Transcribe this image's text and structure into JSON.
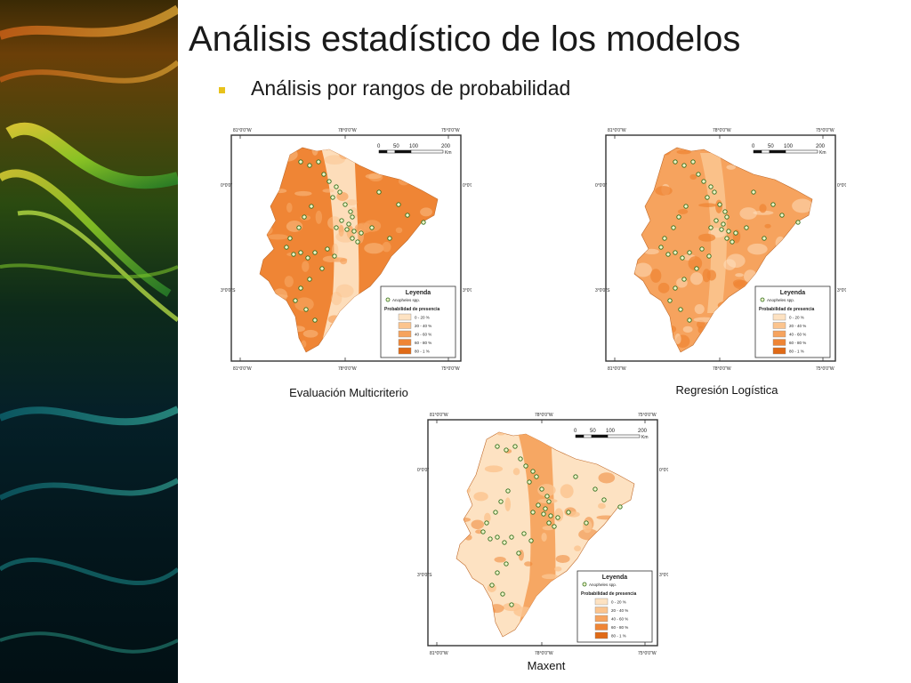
{
  "slide": {
    "title": "Análisis estadístico de los modelos",
    "bullet": "Análisis por rangos de probabilidad"
  },
  "coords": {
    "top": [
      "81°0'0\"W",
      "78°0'0\"W",
      "75°0'0\"W"
    ],
    "bottom": [
      "81°0'0\"W",
      "78°0'0\"W",
      "75°0'0\"W"
    ],
    "left": [
      "0°0'0\"",
      "3°0'0\"S"
    ],
    "right": [
      "0°0'0\"",
      "3°0'0\"S"
    ]
  },
  "scalebar": {
    "ticks": [
      "0",
      "50",
      "100",
      "200"
    ],
    "unit": "Km"
  },
  "legend": {
    "title": "Leyenda",
    "species": "Anopheles spp.",
    "subtitle": "Probabilidad de presencia",
    "classes": [
      "0 - 20 %",
      "20 - 40 %",
      "40 - 60 %",
      "60 - 80 %",
      "80 - 1 %"
    ],
    "colors": [
      "#fde2c2",
      "#fbc48e",
      "#f6a35e",
      "#ef8535",
      "#e06a16"
    ]
  },
  "maps": [
    {
      "caption": "Evaluación Multicriterio"
    },
    {
      "caption": "Regresión Logística"
    },
    {
      "caption": "Maxent"
    }
  ]
}
